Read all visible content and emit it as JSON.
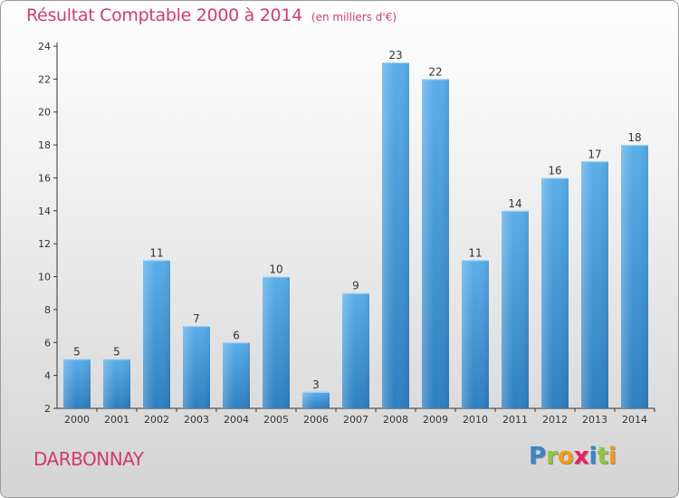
{
  "title": "Résultat Comptable 2000 à 2014",
  "subtitle": "(en milliers d'€)",
  "commune": "DARBONNAY",
  "logo": {
    "letters": [
      "P",
      "r",
      "o",
      "x",
      "i",
      "t",
      "i"
    ],
    "colors": [
      "#3a86c8",
      "#8cc63f",
      "#f39c12",
      "#e91e63",
      "#3a86c8",
      "#8cc63f",
      "#f39c12"
    ]
  },
  "colors": {
    "bar_top": "#5aaeea",
    "bar_bottom": "#2e7fc0",
    "title": "#d23a72",
    "axis": "#333333",
    "tick_text": "#333333"
  },
  "chart_data": {
    "type": "bar",
    "title": "Résultat Comptable 2000 à 2014",
    "xlabel": "",
    "ylabel": "",
    "categories": [
      "2000",
      "2001",
      "2002",
      "2003",
      "2004",
      "2005",
      "2006",
      "2007",
      "2008",
      "2009",
      "2010",
      "2011",
      "2012",
      "2013",
      "2014"
    ],
    "values": [
      5,
      5,
      11,
      7,
      6,
      10,
      3,
      9,
      23,
      22,
      11,
      14,
      16,
      17,
      18
    ],
    "ylim": [
      2,
      24
    ],
    "yticks": [
      2,
      4,
      6,
      8,
      10,
      12,
      14,
      16,
      18,
      20,
      22,
      24
    ],
    "grid": false
  }
}
